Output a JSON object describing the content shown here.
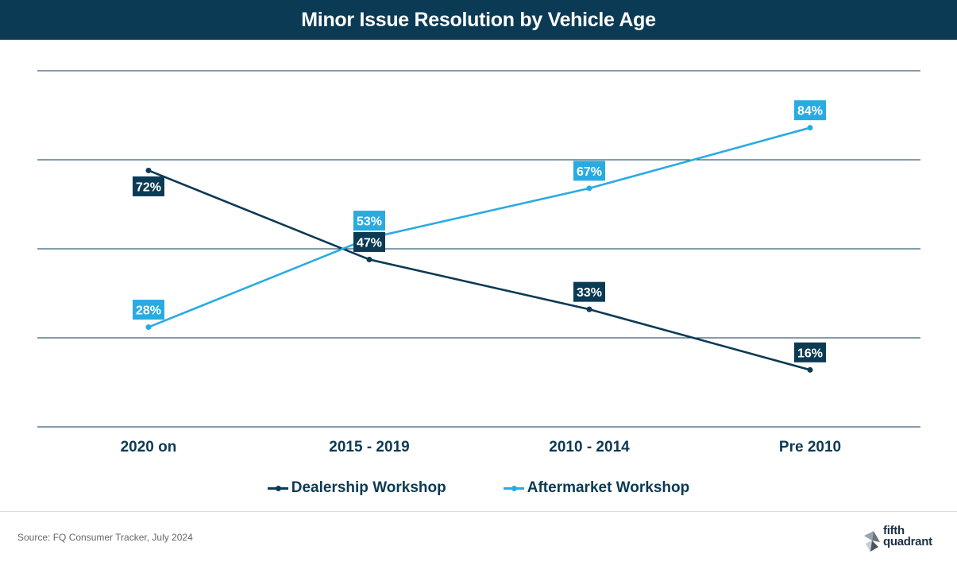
{
  "title": "Minor Issue Resolution by Vehicle Age",
  "source": "Source: FQ Consumer Tracker, July 2024",
  "logo": {
    "line1": "fifth",
    "line2": "quadrant"
  },
  "colors": {
    "dealership": "#0b3a55",
    "aftermarket": "#29abe2",
    "gridline": "#0b3a55",
    "title_bg": "#0b3a55"
  },
  "legend": [
    {
      "label": "Dealership Workshop",
      "color": "#0b3a55"
    },
    {
      "label": "Aftermarket Workshop",
      "color": "#29abe2"
    }
  ],
  "chart_data": {
    "type": "line",
    "title": "Minor Issue Resolution by Vehicle Age",
    "categories": [
      "2020 on",
      "2015 - 2019",
      "2010 - 2014",
      "Pre 2010"
    ],
    "series": [
      {
        "name": "Dealership Workshop",
        "values": [
          72,
          47,
          33,
          16
        ],
        "labels": [
          "72%",
          "47%",
          "33%",
          "16%"
        ]
      },
      {
        "name": "Aftermarket Workshop",
        "values": [
          28,
          53,
          67,
          84
        ],
        "labels": [
          "28%",
          "53%",
          "67%",
          "84%"
        ]
      }
    ],
    "ylim": [
      0,
      100
    ],
    "grid": true,
    "legend_position": "bottom"
  }
}
